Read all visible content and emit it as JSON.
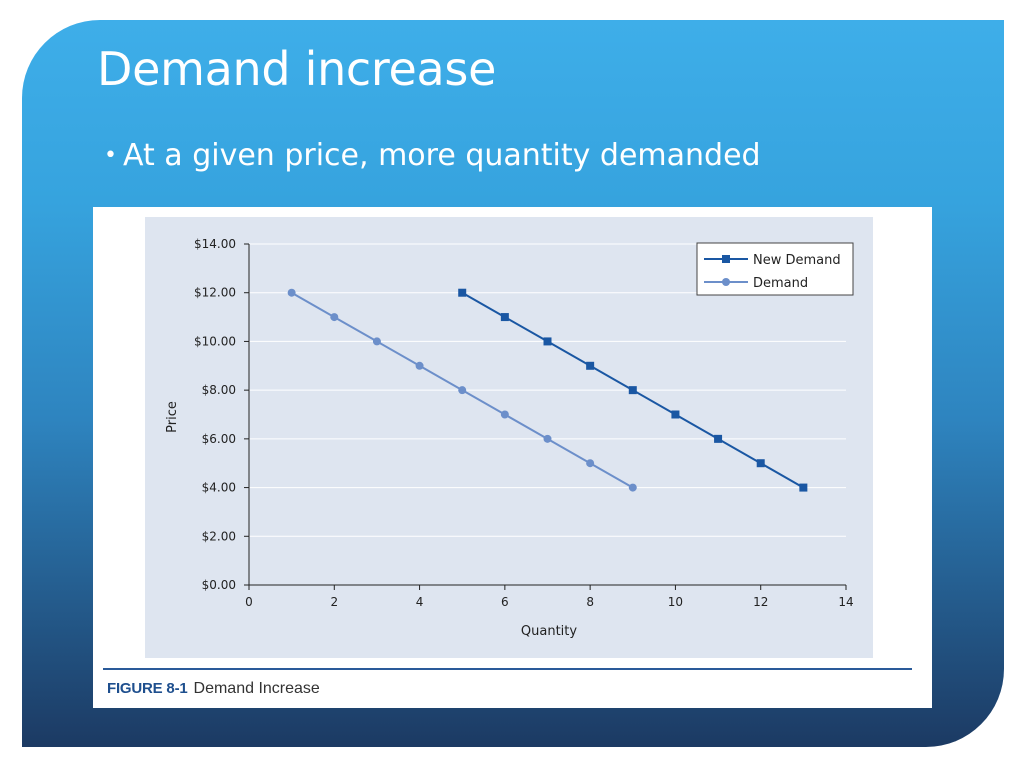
{
  "slide": {
    "title": "Demand increase",
    "bullet": "At a given price, more quantity demanded"
  },
  "colors": {
    "new_demand": "#1a57a3",
    "demand": "#6c8fca",
    "plot_bg": "#dee5f0"
  },
  "figure": {
    "number": "FIGURE 8-1",
    "caption": "Demand Increase"
  },
  "chart_data": {
    "type": "line",
    "title": "",
    "xlabel": "Quantity",
    "ylabel": "Price",
    "xlim": [
      0,
      14
    ],
    "ylim": [
      0,
      14
    ],
    "x_ticks": [
      0,
      2,
      4,
      6,
      8,
      10,
      12,
      14
    ],
    "x_tick_labels": [
      "0",
      "2",
      "4",
      "6",
      "8",
      "10",
      "12",
      "14"
    ],
    "y_ticks": [
      0,
      2,
      4,
      6,
      8,
      10,
      12,
      14
    ],
    "y_tick_labels": [
      "$0.00",
      "$2.00",
      "$4.00",
      "$6.00",
      "$8.00",
      "$10.00",
      "$12.00",
      "$14.00"
    ],
    "grid": true,
    "legend_position": "top-right",
    "series": [
      {
        "name": "New Demand",
        "marker": "square",
        "color": "#1a57a3",
        "x": [
          5,
          6,
          7,
          8,
          9,
          10,
          11,
          12,
          13
        ],
        "y": [
          12,
          11,
          10,
          9,
          8,
          7,
          6,
          5,
          4
        ]
      },
      {
        "name": "Demand",
        "marker": "circle",
        "color": "#6c8fca",
        "x": [
          1,
          2,
          3,
          4,
          5,
          6,
          7,
          8,
          9
        ],
        "y": [
          12,
          11,
          10,
          9,
          8,
          7,
          6,
          5,
          4
        ]
      }
    ]
  }
}
